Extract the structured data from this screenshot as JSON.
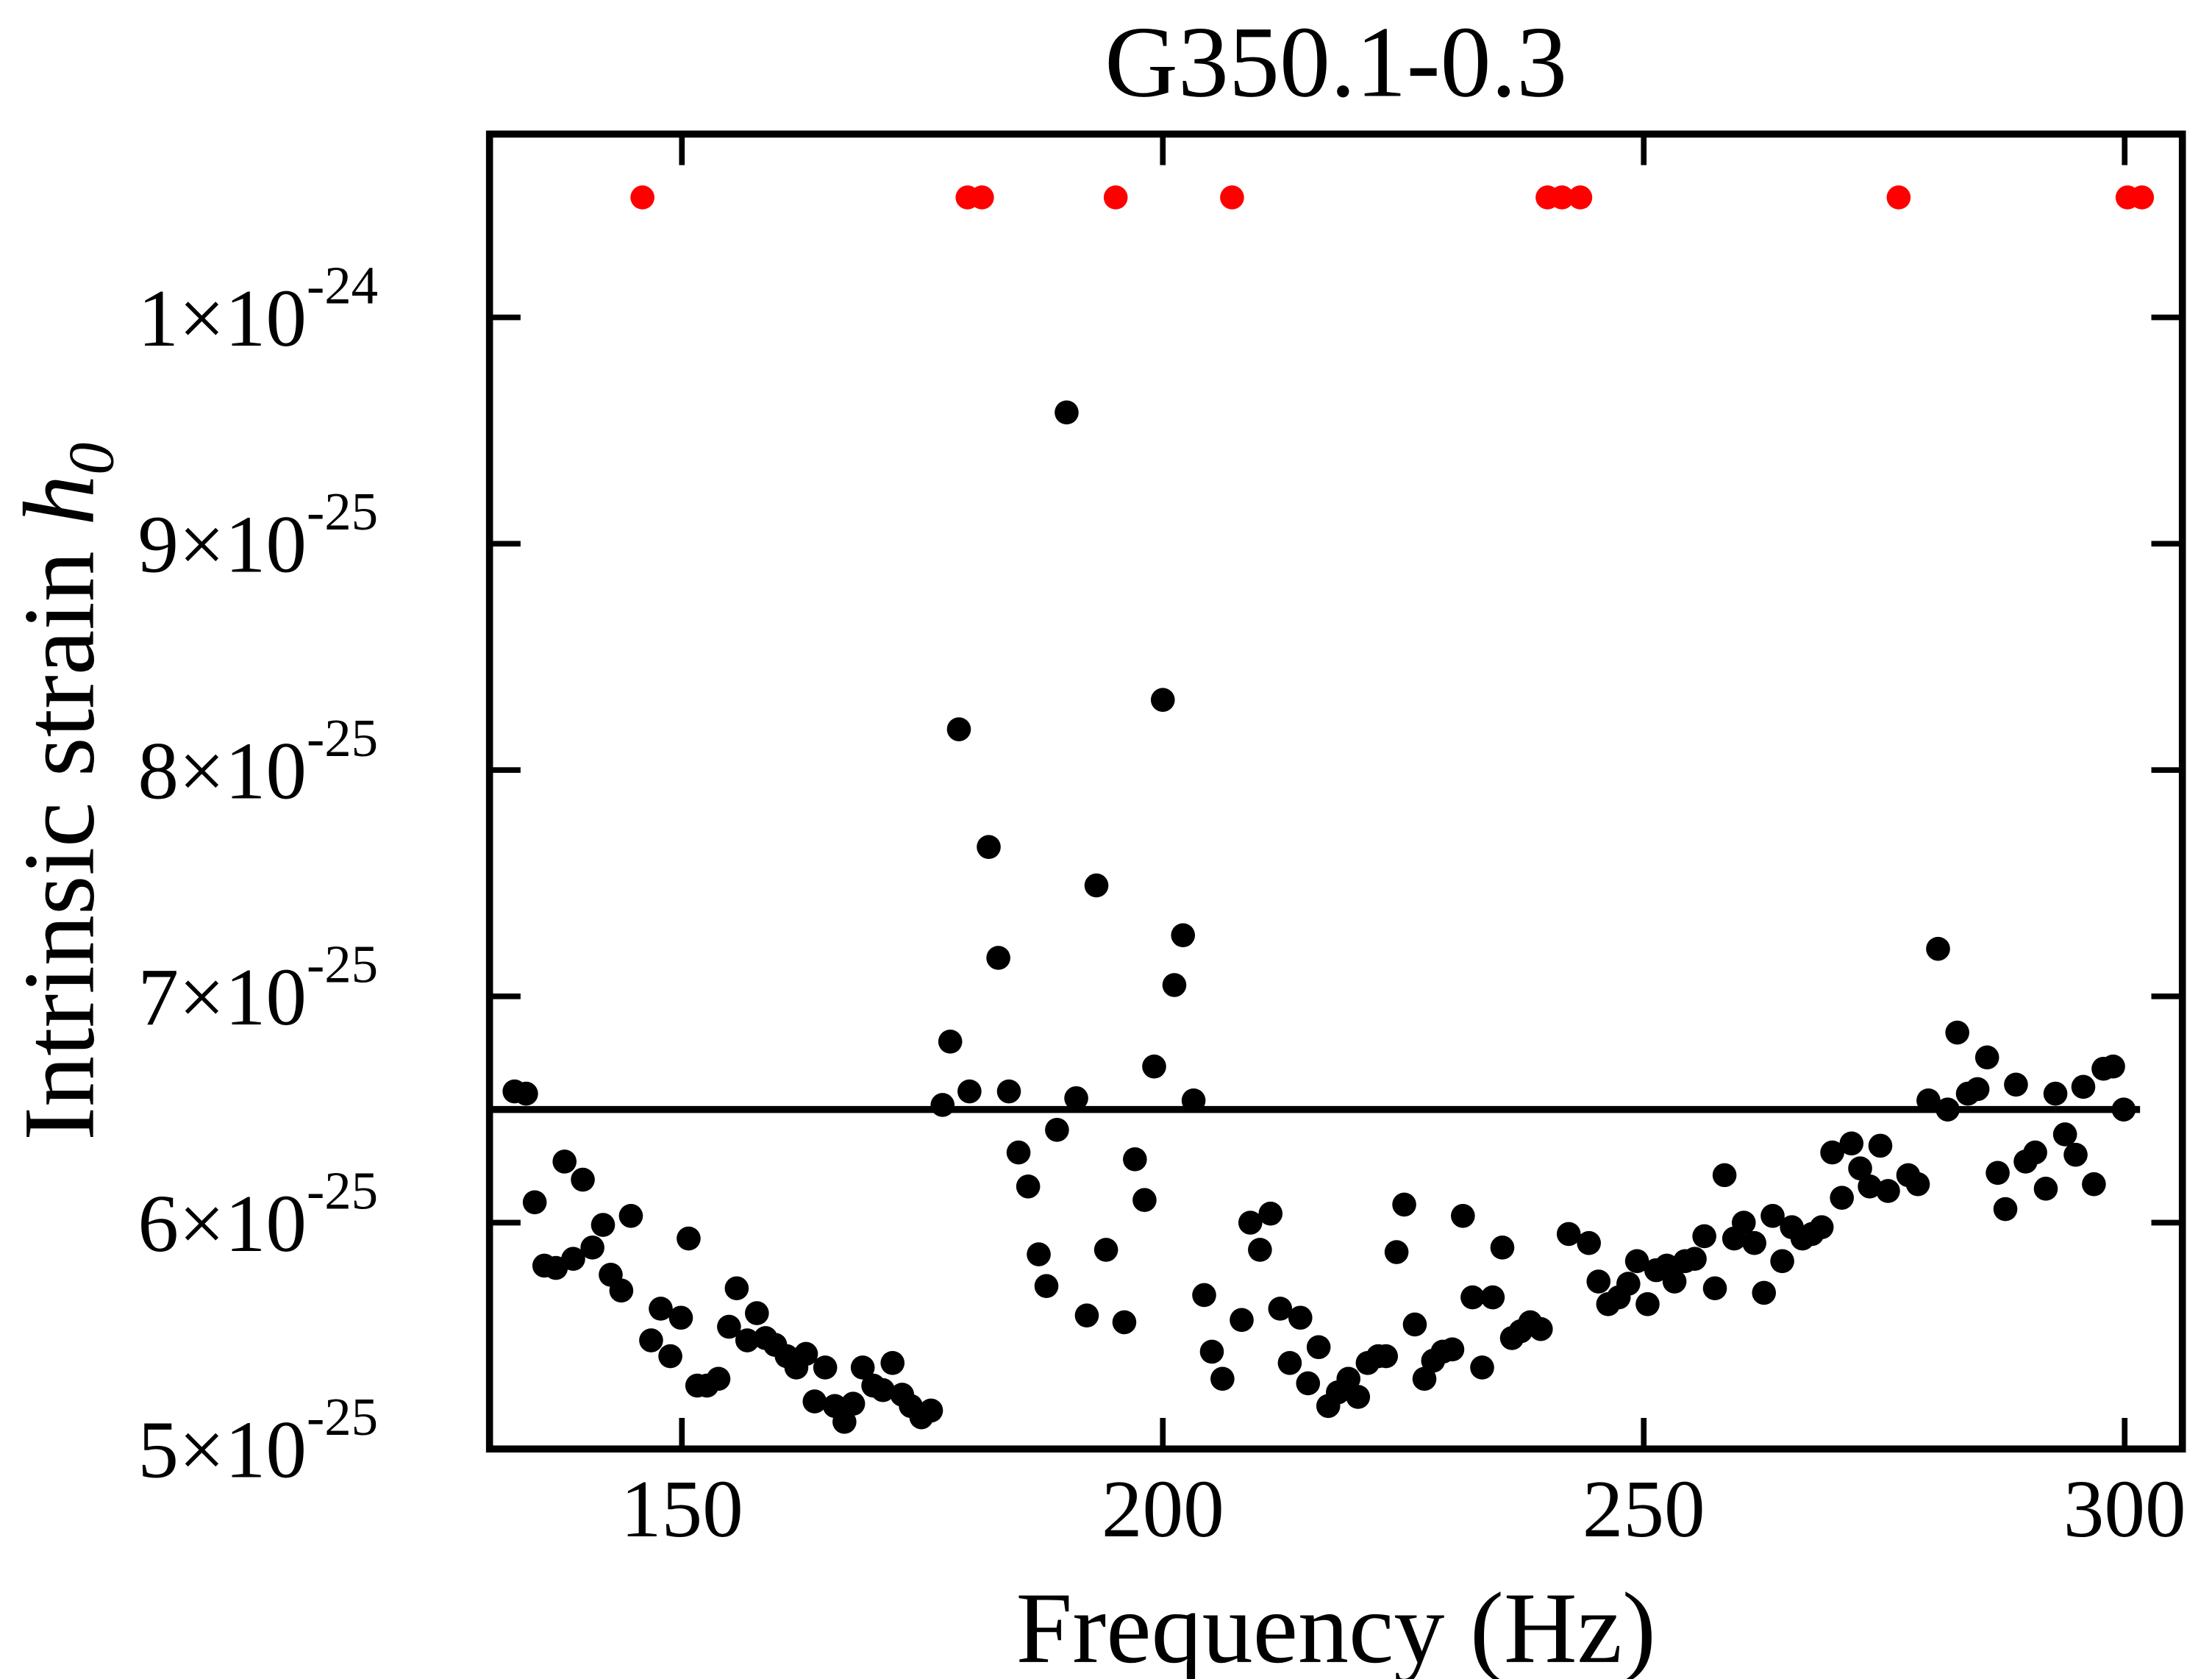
{
  "chart_data": {
    "type": "scatter",
    "title": "G350.1-0.3",
    "xlabel": "Frequency (Hz)",
    "ylabel": {
      "text": "Intrinsic strain",
      "symbol": "h",
      "subscript": "0"
    },
    "xlim": [
      130,
      306
    ],
    "xticks": [
      150,
      200,
      250,
      300
    ],
    "ylim": [
      5e-25,
      1.081e-24
    ],
    "yticks": [
      {
        "value": 5e-25,
        "label": "5×10",
        "exponent": "-25"
      },
      {
        "value": 6e-25,
        "label": "6×10",
        "exponent": "-25"
      },
      {
        "value": 7e-25,
        "label": "7×10",
        "exponent": "-25"
      },
      {
        "value": 8e-25,
        "label": "8×10",
        "exponent": "-25"
      },
      {
        "value": 9e-25,
        "label": "9×10",
        "exponent": "-25"
      },
      {
        "value": 1e-24,
        "label": "1×10",
        "exponent": "-24"
      }
    ],
    "hline": 6.5e-25,
    "hline_color": "#000000",
    "series": [
      {
        "color": "#000000",
        "x": [
          132.6,
          133.8,
          134.7,
          135.7,
          136.9,
          137.8,
          138.7,
          139.7,
          140.7,
          141.8,
          142.6,
          143.7,
          144.7,
          146.8,
          147.8,
          148.8,
          149.9,
          150.7,
          151.6,
          152.6,
          153.8,
          154.9,
          155.7,
          156.8,
          157.8,
          158.7,
          159.7,
          160.9,
          161.9,
          162.9,
          163.8,
          164.9,
          165.9,
          166.9,
          167.8,
          168.8,
          169.9,
          170.9,
          171.9,
          172.9,
          173.8,
          174.9,
          175.9,
          177.1,
          177.9,
          178.8,
          179.9,
          181.9,
          182.9,
          184.0,
          185.0,
          186.0,
          187.1,
          187.9,
          189.0,
          190.0,
          191.0,
          192.1,
          193.1,
          194.1,
          196.0,
          197.1,
          198.1,
          199.1,
          200.0,
          201.2,
          202.1,
          203.2,
          204.3,
          205.1,
          206.2,
          208.2,
          209.1,
          210.1,
          211.2,
          212.2,
          213.2,
          214.3,
          215.1,
          216.2,
          217.2,
          218.2,
          219.3,
          220.3,
          221.3,
          222.4,
          223.2,
          224.3,
          225.1,
          226.2,
          227.2,
          228.1,
          229.1,
          230.1,
          231.2,
          232.2,
          233.2,
          234.3,
          235.3,
          236.3,
          237.2,
          238.2,
          239.3,
          242.2,
          244.3,
          245.3,
          246.3,
          247.4,
          248.4,
          249.3,
          250.4,
          251.3,
          252.4,
          253.2,
          254.3,
          255.3,
          256.3,
          257.4,
          258.4,
          259.4,
          260.4,
          261.5,
          262.5,
          263.4,
          264.4,
          265.4,
          266.5,
          267.5,
          268.5,
          269.6,
          270.6,
          271.6,
          272.5,
          273.5,
          274.6,
          275.4,
          277.5,
          278.5,
          279.6,
          280.6,
          281.6,
          282.6,
          283.7,
          284.7,
          285.7,
          286.8,
          287.6,
          288.7,
          289.7,
          290.7,
          291.8,
          292.8,
          293.8,
          294.9,
          295.7,
          296.8,
          297.8,
          298.8,
          299.9
        ],
        "values": [
          6.58e-25,
          6.57e-25,
          6.09e-25,
          5.81e-25,
          5.8e-25,
          6.27e-25,
          5.84e-25,
          6.19e-25,
          5.89e-25,
          5.99e-25,
          5.77e-25,
          5.7e-25,
          6.03e-25,
          5.48e-25,
          5.62e-25,
          5.41e-25,
          5.58e-25,
          5.93e-25,
          5.28e-25,
          5.28e-25,
          5.31e-25,
          5.54e-25,
          5.71e-25,
          5.48e-25,
          5.6e-25,
          5.49e-25,
          5.46e-25,
          5.41e-25,
          5.36e-25,
          5.42e-25,
          5.21e-25,
          5.36e-25,
          5.19e-25,
          5.12e-25,
          5.2e-25,
          5.36e-25,
          5.28e-25,
          5.26e-25,
          5.38e-25,
          5.24e-25,
          5.19e-25,
          5.14e-25,
          5.17e-25,
          6.52e-25,
          6.8e-25,
          8.18e-25,
          6.58e-25,
          7.66e-25,
          7.17e-25,
          6.58e-25,
          6.31e-25,
          6.16e-25,
          5.86e-25,
          5.72e-25,
          6.41e-25,
          9.58e-25,
          6.55e-25,
          5.59e-25,
          7.49e-25,
          5.88e-25,
          5.56e-25,
          6.28e-25,
          6.1e-25,
          6.69e-25,
          8.31e-25,
          7.05e-25,
          7.27e-25,
          6.54e-25,
          5.68e-25,
          5.43e-25,
          5.31e-25,
          5.57e-25,
          6e-25,
          5.88e-25,
          6.04e-25,
          5.62e-25,
          5.38e-25,
          5.58e-25,
          5.29e-25,
          5.45e-25,
          5.19e-25,
          5.25e-25,
          5.31e-25,
          5.23e-25,
          5.38e-25,
          5.41e-25,
          5.41e-25,
          5.87e-25,
          6.08e-25,
          5.55e-25,
          5.31e-25,
          5.39e-25,
          5.43e-25,
          5.44e-25,
          6.03e-25,
          5.67e-25,
          5.36e-25,
          5.67e-25,
          5.89e-25,
          5.49e-25,
          5.52e-25,
          5.56e-25,
          5.53e-25,
          5.95e-25,
          5.91e-25,
          5.74e-25,
          5.64e-25,
          5.67e-25,
          5.73e-25,
          5.83e-25,
          5.64e-25,
          5.79e-25,
          5.81e-25,
          5.74e-25,
          5.83e-25,
          5.84e-25,
          5.94e-25,
          5.71e-25,
          6.21e-25,
          5.93e-25,
          6e-25,
          5.91e-25,
          5.69e-25,
          6.03e-25,
          5.83e-25,
          5.98e-25,
          5.93e-25,
          5.95e-25,
          5.98e-25,
          6.31e-25,
          6.11e-25,
          6.35e-25,
          6.24e-25,
          6.16e-25,
          6.34e-25,
          6.14e-25,
          6.21e-25,
          6.17e-25,
          6.54e-25,
          7.21e-25,
          6.5e-25,
          6.84e-25,
          6.57e-25,
          6.59e-25,
          6.73e-25,
          6.22e-25,
          6.06e-25,
          6.61e-25,
          6.27e-25,
          6.31e-25,
          6.15e-25,
          6.57e-25,
          6.39e-25,
          6.3e-25,
          6.6e-25,
          6.17e-25,
          6.68e-25,
          6.69e-25,
          6.5e-25
        ]
      },
      {
        "color": "#ff0000",
        "x": [
          145.9,
          179.7,
          181.2,
          195.1,
          207.2,
          240.0,
          241.5,
          243.4,
          276.5,
          300.3,
          301.8
        ],
        "values": [
          1.053e-24,
          1.053e-24,
          1.053e-24,
          1.053e-24,
          1.053e-24,
          1.053e-24,
          1.053e-24,
          1.053e-24,
          1.053e-24,
          1.053e-24,
          1.053e-24
        ]
      }
    ]
  }
}
